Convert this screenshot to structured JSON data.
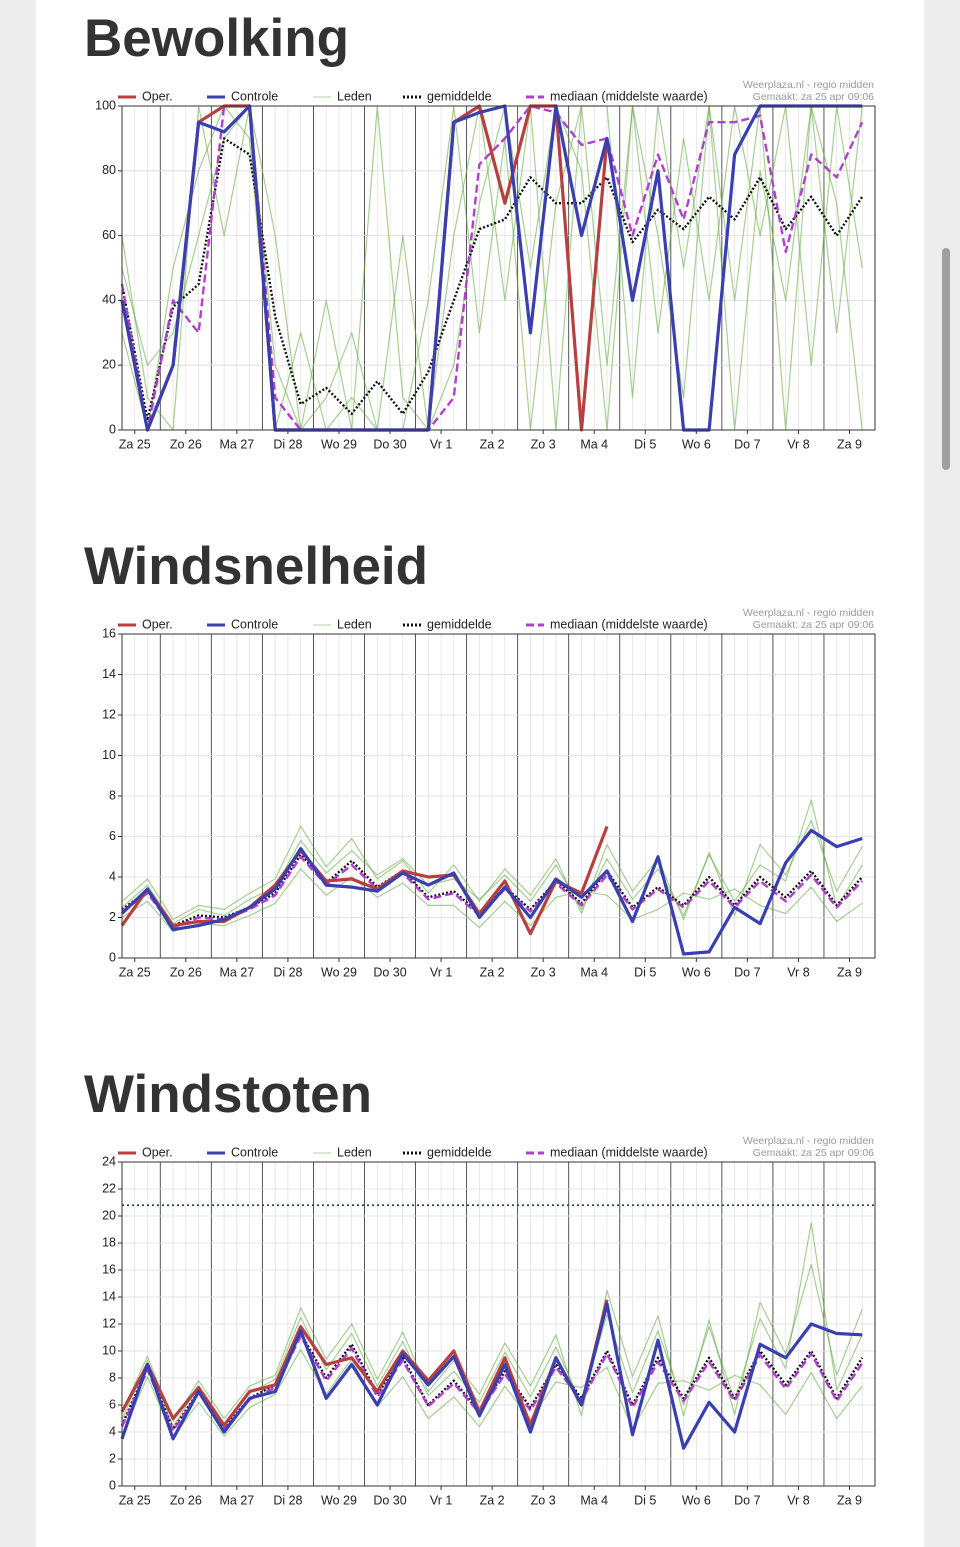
{
  "chart_data": [
    {
      "type": "line",
      "title": "Bewolking",
      "source": "Weerplaza.nl - regio midden",
      "made": "Gemaakt: za 25 apr 09:06",
      "x": [
        0.25,
        0.75,
        1.25,
        1.75,
        2.25,
        2.75,
        3.25,
        3.75,
        4.25,
        4.75,
        5.25,
        5.75,
        6.25,
        6.75,
        7.25,
        7.75,
        8.25,
        8.75,
        9.25,
        9.75,
        10.25,
        10.75,
        11.25,
        11.75,
        12.25,
        12.75,
        13.25,
        13.75,
        14.25,
        14.75
      ],
      "xlim": [
        0.25,
        15
      ],
      "xticks": [
        {
          "value": 0.5,
          "label": "Za 25"
        },
        {
          "value": 1.5,
          "label": "Zo 26"
        },
        {
          "value": 2.5,
          "label": "Ma 27"
        },
        {
          "value": 3.5,
          "label": "Di 28"
        },
        {
          "value": 4.5,
          "label": "Wo 29"
        },
        {
          "value": 5.5,
          "label": "Do 30"
        },
        {
          "value": 6.5,
          "label": "Vr 1"
        },
        {
          "value": 7.5,
          "label": "Za 2"
        },
        {
          "value": 8.5,
          "label": "Zo 3"
        },
        {
          "value": 9.5,
          "label": "Ma 4"
        },
        {
          "value": 10.5,
          "label": "Di 5"
        },
        {
          "value": 11.5,
          "label": "Wo 6"
        },
        {
          "value": 12.5,
          "label": "Do 7"
        },
        {
          "value": 13.5,
          "label": "Vr 8"
        },
        {
          "value": 14.5,
          "label": "Za 9"
        }
      ],
      "ylim": [
        0,
        100
      ],
      "yticks": [
        0,
        20,
        40,
        60,
        80,
        100
      ],
      "grid": true,
      "series": [
        {
          "name": "Oper.",
          "color": "#b5403f",
          "style": "solid",
          "values": [
            40,
            0,
            20,
            95,
            100,
            100,
            0,
            0,
            0,
            0,
            0,
            0,
            0,
            95,
            100,
            70,
            100,
            100,
            0,
            90,
            null,
            null,
            null,
            null,
            null,
            null,
            null,
            null,
            null,
            null
          ]
        },
        {
          "name": "Controle",
          "color": "#3a3fb0",
          "style": "solid",
          "values": [
            40,
            0,
            20,
            95,
            92,
            100,
            0,
            0,
            0,
            0,
            0,
            0,
            0,
            95,
            98,
            100,
            30,
            100,
            60,
            90,
            40,
            80,
            0,
            0,
            85,
            100,
            100,
            100,
            100,
            100
          ]
        },
        {
          "name": "Leden",
          "color": "#5fa83a",
          "style": "members",
          "members": [
            [
              60,
              10,
              0,
              100,
              60,
              100,
              20,
              0,
              40,
              0,
              100,
              10,
              0,
              60,
              100,
              40,
              100,
              0,
              100,
              20,
              100,
              60,
              10,
              100,
              40,
              100,
              0,
              100,
              30,
              100
            ],
            [
              30,
              0,
              50,
              80,
              100,
              90,
              0,
              30,
              0,
              10,
              0,
              60,
              0,
              20,
              70,
              100,
              50,
              100,
              80,
              0,
              100,
              30,
              90,
              40,
              100,
              60,
              100,
              20,
              100,
              50
            ],
            [
              50,
              20,
              30,
              60,
              90,
              100,
              60,
              0,
              10,
              30,
              0,
              0,
              40,
              100,
              30,
              90,
              0,
              70,
              100,
              100,
              10,
              100,
              50,
              100,
              0,
              80,
              40,
              100,
              70,
              0
            ]
          ]
        },
        {
          "name": "gemiddelde",
          "color": "#111111",
          "style": "dotted",
          "values": [
            45,
            3,
            38,
            45,
            90,
            85,
            35,
            8,
            13,
            5,
            15,
            5,
            18,
            40,
            62,
            65,
            78,
            70,
            70,
            78,
            58,
            68,
            62,
            72,
            65,
            78,
            62,
            72,
            60,
            72
          ]
        },
        {
          "name": "mediaan (middelste waarde)",
          "color": "#b03fd0",
          "style": "dashed",
          "values": [
            45,
            0,
            40,
            30,
            100,
            100,
            10,
            0,
            0,
            0,
            0,
            0,
            0,
            10,
            82,
            90,
            100,
            98,
            88,
            90,
            60,
            85,
            65,
            95,
            95,
            97,
            55,
            85,
            78,
            95
          ]
        }
      ]
    },
    {
      "type": "line",
      "title": "Windsnelheid",
      "source": "Weerplaza.nl - regio midden",
      "made": "Gemaakt: za 25 apr 09:06",
      "x": [
        0.25,
        0.75,
        1.25,
        1.75,
        2.25,
        2.75,
        3.25,
        3.75,
        4.25,
        4.75,
        5.25,
        5.75,
        6.25,
        6.75,
        7.25,
        7.75,
        8.25,
        8.75,
        9.25,
        9.75,
        10.25,
        10.75,
        11.25,
        11.75,
        12.25,
        12.75,
        13.25,
        13.75,
        14.25,
        14.75
      ],
      "xlim": [
        0.25,
        15
      ],
      "xticks": [
        {
          "value": 0.5,
          "label": "Za 25"
        },
        {
          "value": 1.5,
          "label": "Zo 26"
        },
        {
          "value": 2.5,
          "label": "Ma 27"
        },
        {
          "value": 3.5,
          "label": "Di 28"
        },
        {
          "value": 4.5,
          "label": "Wo 29"
        },
        {
          "value": 5.5,
          "label": "Do 30"
        },
        {
          "value": 6.5,
          "label": "Vr 1"
        },
        {
          "value": 7.5,
          "label": "Za 2"
        },
        {
          "value": 8.5,
          "label": "Zo 3"
        },
        {
          "value": 9.5,
          "label": "Ma 4"
        },
        {
          "value": 10.5,
          "label": "Di 5"
        },
        {
          "value": 11.5,
          "label": "Wo 6"
        },
        {
          "value": 12.5,
          "label": "Do 7"
        },
        {
          "value": 13.5,
          "label": "Vr 8"
        },
        {
          "value": 14.5,
          "label": "Za 9"
        }
      ],
      "ylim": [
        0,
        16
      ],
      "yticks": [
        0,
        2,
        4,
        6,
        8,
        10,
        12,
        14,
        16
      ],
      "grid": true,
      "series": [
        {
          "name": "Oper.",
          "color": "#b5403f",
          "style": "solid",
          "values": [
            1.6,
            3.4,
            1.6,
            1.8,
            1.8,
            2.5,
            3.6,
            5.3,
            3.8,
            3.9,
            3.4,
            4.3,
            4,
            4.1,
            2.2,
            3.8,
            1.2,
            3.8,
            3.2,
            6.5,
            null,
            null,
            null,
            null,
            null,
            null,
            null,
            null,
            null,
            null
          ]
        },
        {
          "name": "Controle",
          "color": "#3a3fb0",
          "style": "solid",
          "values": [
            2.2,
            3.4,
            1.4,
            1.6,
            1.9,
            2.5,
            3.4,
            5.4,
            3.6,
            3.5,
            3.3,
            4.2,
            3.6,
            4.2,
            2,
            3.5,
            2,
            3.9,
            3,
            4.3,
            1.8,
            5,
            0.2,
            0.3,
            2.5,
            1.7,
            4.7,
            6.3,
            5.5,
            5.9
          ]
        },
        {
          "name": "Leden",
          "color": "#5fa83a",
          "style": "members",
          "members": [
            [
              2.8,
              3.9,
              1.9,
              2.6,
              2.4,
              3.2,
              3.9,
              6.5,
              4.5,
              5.9,
              3.9,
              4.8,
              3.2,
              4.6,
              2.8,
              4.4,
              3.1,
              4.9,
              2.2,
              5.6,
              3.3,
              4.9,
              1.9,
              5.2,
              2.1,
              5.6,
              4.1,
              6.8,
              3.3,
              5.5
            ],
            [
              2.0,
              2.8,
              1.3,
              1.7,
              1.6,
              2.1,
              2.7,
              4.4,
              3.1,
              4.0,
              3.0,
              3.7,
              2.6,
              2.6,
              1.5,
              2.8,
              1.6,
              3.0,
              3.3,
              3.1,
              1.9,
              2.4,
              3.2,
              2.9,
              3.4,
              2.6,
              2.2,
              3.5,
              1.8,
              2.7
            ],
            [
              2.5,
              3.6,
              1.7,
              2.4,
              2.1,
              2.9,
              3.5,
              5.8,
              4.2,
              5.3,
              4.1,
              4.9,
              3.6,
              3.9,
              2.9,
              4.1,
              2.8,
              4.6,
              2.4,
              4.9,
              2.9,
              4.4,
              2.1,
              5.1,
              2.8,
              4.6,
              3.8,
              7.8,
              2.5,
              4.6
            ]
          ]
        },
        {
          "name": "gemiddelde",
          "color": "#111111",
          "style": "dotted",
          "values": [
            2.4,
            3.3,
            1.6,
            2.1,
            2,
            2.5,
            3.2,
            5.1,
            3.7,
            4.8,
            3.5,
            4.3,
            3,
            3.3,
            2.2,
            3.5,
            2.4,
            3.8,
            2.7,
            4.3,
            2.5,
            3.5,
            2.6,
            4,
            2.6,
            4,
            3,
            4.3,
            2.6,
            4
          ]
        },
        {
          "name": "mediaan (middelste waarde)",
          "color": "#b03fd0",
          "style": "dashed",
          "values": [
            2.3,
            3.2,
            1.5,
            2,
            1.9,
            2.4,
            3.1,
            5,
            3.6,
            4.6,
            3.4,
            4.2,
            2.9,
            3.2,
            2.1,
            3.4,
            2.3,
            3.7,
            2.6,
            4.1,
            2.4,
            3.4,
            2.5,
            3.8,
            2.5,
            3.8,
            2.8,
            4.1,
            2.5,
            3.8
          ]
        }
      ]
    },
    {
      "type": "line",
      "title": "Windstoten",
      "source": "Weerplaza.nl - regio midden",
      "made": "Gemaakt: za 25 apr 09:06",
      "x": [
        0.25,
        0.75,
        1.25,
        1.75,
        2.25,
        2.75,
        3.25,
        3.75,
        4.25,
        4.75,
        5.25,
        5.75,
        6.25,
        6.75,
        7.25,
        7.75,
        8.25,
        8.75,
        9.25,
        9.75,
        10.25,
        10.75,
        11.25,
        11.75,
        12.25,
        12.75,
        13.25,
        13.75,
        14.25,
        14.75
      ],
      "xlim": [
        0.25,
        15
      ],
      "xticks": [
        {
          "value": 0.5,
          "label": "Za 25"
        },
        {
          "value": 1.5,
          "label": "Zo 26"
        },
        {
          "value": 2.5,
          "label": "Ma 27"
        },
        {
          "value": 3.5,
          "label": "Di 28"
        },
        {
          "value": 4.5,
          "label": "Wo 29"
        },
        {
          "value": 5.5,
          "label": "Do 30"
        },
        {
          "value": 6.5,
          "label": "Vr 1"
        },
        {
          "value": 7.5,
          "label": "Za 2"
        },
        {
          "value": 8.5,
          "label": "Zo 3"
        },
        {
          "value": 9.5,
          "label": "Ma 4"
        },
        {
          "value": 10.5,
          "label": "Di 5"
        },
        {
          "value": 11.5,
          "label": "Wo 6"
        },
        {
          "value": 12.5,
          "label": "Do 7"
        },
        {
          "value": 13.5,
          "label": "Vr 8"
        },
        {
          "value": 14.5,
          "label": "Za 9"
        }
      ],
      "ylim": [
        0,
        24
      ],
      "yticks": [
        0,
        2,
        4,
        6,
        8,
        10,
        12,
        14,
        16,
        18,
        20,
        22,
        24
      ],
      "grid": true,
      "reference_line": 20.8,
      "series": [
        {
          "name": "Oper.",
          "color": "#b5403f",
          "style": "solid",
          "values": [
            5.5,
            9,
            5,
            7.3,
            4.5,
            7,
            7.5,
            11.8,
            9,
            9.5,
            7,
            10,
            7.8,
            10,
            5.5,
            9.5,
            4.5,
            9.5,
            6,
            13.8,
            null,
            null,
            null,
            null,
            null,
            null,
            null,
            null,
            null,
            null
          ]
        },
        {
          "name": "Controle",
          "color": "#3a3fb0",
          "style": "solid",
          "values": [
            3.5,
            9,
            3.5,
            7,
            4,
            6.5,
            7,
            11.5,
            6.5,
            9,
            6,
            9.8,
            7.5,
            9.6,
            5.2,
            9,
            4,
            9.5,
            6,
            13.5,
            3.8,
            10.8,
            2.8,
            6.2,
            4,
            10.5,
            9.5,
            12,
            11.3,
            11.2
          ]
        },
        {
          "name": "Leden",
          "color": "#5fa83a",
          "style": "members",
          "members": [
            [
              5.5,
              9.6,
              4.8,
              7.8,
              5.0,
              7.4,
              8.2,
              13.2,
              9.4,
              12.0,
              7.9,
              11.4,
              7.0,
              9.3,
              6.8,
              10.6,
              7.4,
              11.2,
              5.2,
              14.5,
              8.1,
              12.6,
              5.2,
              12.3,
              5.3,
              13.6,
              9.8,
              16.4,
              8.2,
              13.1
            ],
            [
              3.8,
              8.1,
              3.6,
              6.2,
              3.7,
              5.8,
              6.8,
              10.1,
              6.8,
              9.4,
              5.9,
              8.1,
              5.0,
              6.6,
              4.4,
              7.4,
              4.9,
              7.7,
              7.3,
              8.8,
              4.2,
              7.6,
              7.8,
              7.1,
              8.2,
              7.5,
              5.3,
              8.4,
              5.0,
              7.4
            ],
            [
              4.9,
              9.3,
              4.4,
              7.4,
              4.6,
              6.9,
              7.9,
              12.5,
              8.6,
              11.3,
              7.4,
              10.7,
              6.7,
              8.5,
              6.2,
              9.9,
              6.6,
              10.3,
              6.1,
              12.7,
              6.9,
              11.5,
              6.0,
              11.8,
              6.4,
              12.4,
              8.7,
              19.5,
              7.1,
              11.2
            ]
          ]
        },
        {
          "name": "gemiddelde",
          "color": "#111111",
          "style": "dotted",
          "values": [
            4.5,
            8.8,
            4.2,
            7,
            4.3,
            6.5,
            7.5,
            11.3,
            8,
            10.5,
            6.8,
            9.5,
            6,
            7.8,
            5.5,
            8.5,
            5.8,
            9,
            6.5,
            10,
            6,
            9.5,
            6.5,
            9.5,
            6.5,
            10,
            7.5,
            10,
            6.5,
            9.5
          ]
        },
        {
          "name": "mediaan (middelste waarde)",
          "color": "#b03fd0",
          "style": "dashed",
          "values": [
            4.4,
            8.6,
            4.1,
            6.9,
            4.2,
            6.4,
            7.3,
            11.1,
            7.8,
            10.2,
            6.6,
            9.3,
            5.9,
            7.6,
            5.4,
            8.3,
            5.6,
            8.8,
            6.3,
            9.8,
            5.8,
            9.2,
            6.3,
            9.2,
            6.3,
            9.7,
            7.2,
            9.8,
            6.3,
            9.1
          ]
        }
      ]
    }
  ]
}
